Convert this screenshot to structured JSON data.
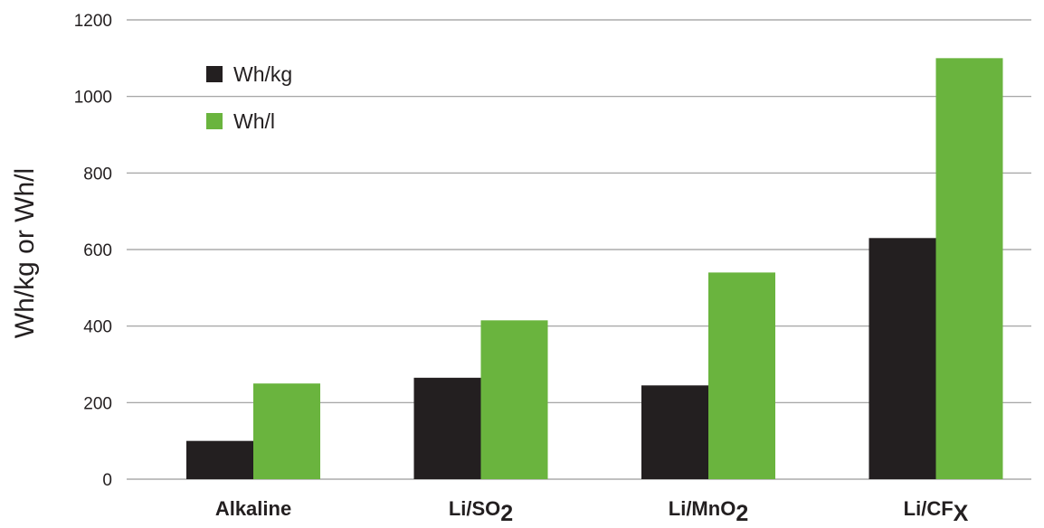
{
  "chart_data": {
    "type": "bar",
    "ylabel": "Wh/kg or Wh/l",
    "ylim": [
      0,
      1200
    ],
    "yticks": [
      0,
      200,
      400,
      600,
      800,
      1000,
      1200
    ],
    "grid": true,
    "legend_position": "top-left",
    "categories": [
      {
        "base": "Alkaline",
        "sub": ""
      },
      {
        "base": "Li/SO",
        "sub": "2"
      },
      {
        "base": "Li/MnO",
        "sub": "2"
      },
      {
        "base": "Li/CF",
        "sub": "X"
      }
    ],
    "series": [
      {
        "name": "Wh/kg",
        "color": "#231f20",
        "values": [
          100,
          265,
          245,
          630
        ]
      },
      {
        "name": "Wh/l",
        "color": "#6ab43e",
        "values": [
          250,
          415,
          540,
          1100
        ]
      }
    ]
  }
}
